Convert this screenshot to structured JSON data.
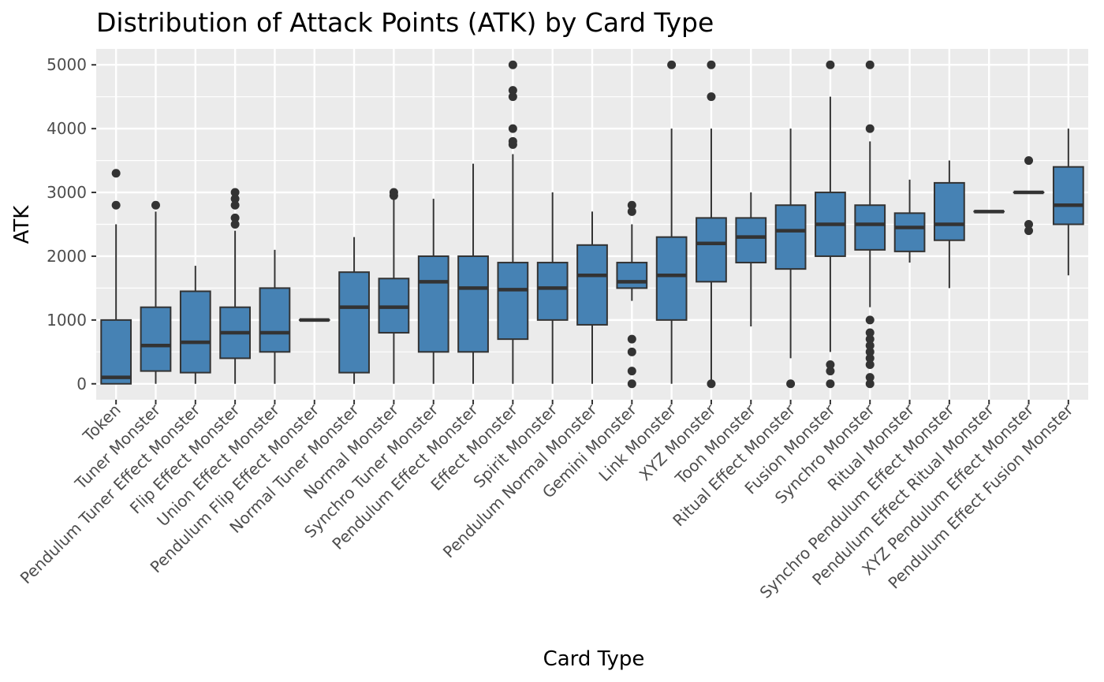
{
  "chart_data": {
    "type": "boxplot",
    "title": "Distribution of Attack Points (ATK) by Card Type",
    "xlabel": "Card Type",
    "ylabel": "ATK",
    "ylim": [
      -250,
      5250
    ],
    "yticks": [
      0,
      1000,
      2000,
      3000,
      4000,
      5000
    ],
    "grid": true,
    "legend": "none",
    "colors": {
      "panel": "#ebebeb",
      "grid": "#ffffff",
      "box_fill": "#4682b4",
      "box_line": "#333333",
      "tick_text": "#4d4d4d"
    },
    "categories": [
      {
        "label": "Token",
        "min": 0,
        "q1": 0,
        "median": 100,
        "q3": 1000,
        "max": 2500,
        "outliers": [
          2800,
          3300
        ]
      },
      {
        "label": "Tuner Monster",
        "min": 0,
        "q1": 200,
        "median": 600,
        "q3": 1200,
        "max": 2700,
        "outliers": [
          2800
        ]
      },
      {
        "label": "Pendulum Tuner Effect Monster",
        "min": 0,
        "q1": 175,
        "median": 650,
        "q3": 1450,
        "max": 1850,
        "outliers": []
      },
      {
        "label": "Flip Effect Monster",
        "min": 0,
        "q1": 400,
        "median": 800,
        "q3": 1200,
        "max": 2400,
        "outliers": [
          2500,
          2600,
          2800,
          2900,
          3000
        ]
      },
      {
        "label": "Union Effect Monster",
        "min": 0,
        "q1": 500,
        "median": 800,
        "q3": 1500,
        "max": 2100,
        "outliers": []
      },
      {
        "label": "Pendulum Flip Effect Monster",
        "min": 1000,
        "q1": 1000,
        "median": 1000,
        "q3": 1000,
        "max": 1000,
        "outliers": []
      },
      {
        "label": "Normal Tuner Monster",
        "min": 0,
        "q1": 175,
        "median": 1200,
        "q3": 1750,
        "max": 2300,
        "outliers": []
      },
      {
        "label": "Normal Monster",
        "min": 0,
        "q1": 800,
        "median": 1200,
        "q3": 1650,
        "max": 2900,
        "outliers": [
          2950,
          3000
        ]
      },
      {
        "label": "Synchro Tuner Monster",
        "min": 0,
        "q1": 500,
        "median": 1600,
        "q3": 2000,
        "max": 2900,
        "outliers": []
      },
      {
        "label": "Pendulum Effect Monster",
        "min": 0,
        "q1": 500,
        "median": 1500,
        "q3": 2000,
        "max": 3450,
        "outliers": []
      },
      {
        "label": "Effect Monster",
        "min": 0,
        "q1": 700,
        "median": 1475,
        "q3": 1900,
        "max": 3600,
        "outliers": [
          3750,
          3800,
          4000,
          4500,
          4600,
          5000
        ]
      },
      {
        "label": "Spirit Monster",
        "min": 0,
        "q1": 1000,
        "median": 1500,
        "q3": 1900,
        "max": 3000,
        "outliers": []
      },
      {
        "label": "Pendulum Normal Monster",
        "min": 0,
        "q1": 925,
        "median": 1700,
        "q3": 2175,
        "max": 2700,
        "outliers": []
      },
      {
        "label": "Gemini Monster",
        "min": 1300,
        "q1": 1500,
        "median": 1600,
        "q3": 1900,
        "max": 2500,
        "outliers": [
          0,
          200,
          500,
          700,
          2700,
          2800
        ]
      },
      {
        "label": "Link Monster",
        "min": 0,
        "q1": 1000,
        "median": 1700,
        "q3": 2300,
        "max": 4000,
        "outliers": [
          5000
        ]
      },
      {
        "label": "XYZ Monster",
        "min": 0,
        "q1": 1600,
        "median": 2200,
        "q3": 2600,
        "max": 4000,
        "outliers": [
          0,
          4500,
          5000
        ]
      },
      {
        "label": "Toon Monster",
        "min": 900,
        "q1": 1900,
        "median": 2300,
        "q3": 2600,
        "max": 3000,
        "outliers": []
      },
      {
        "label": "Ritual Effect Monster",
        "min": 400,
        "q1": 1800,
        "median": 2400,
        "q3": 2800,
        "max": 4000,
        "outliers": [
          0
        ]
      },
      {
        "label": "Fusion Monster",
        "min": 500,
        "q1": 2000,
        "median": 2500,
        "q3": 3000,
        "max": 4500,
        "outliers": [
          0,
          200,
          300,
          5000
        ]
      },
      {
        "label": "Synchro Monster",
        "min": 1200,
        "q1": 2100,
        "median": 2500,
        "q3": 2800,
        "max": 3800,
        "outliers": [
          0,
          100,
          300,
          400,
          500,
          600,
          700,
          800,
          1000,
          4000,
          5000
        ]
      },
      {
        "label": "Ritual Monster",
        "min": 1900,
        "q1": 2075,
        "median": 2450,
        "q3": 2675,
        "max": 3200,
        "outliers": []
      },
      {
        "label": "Synchro Pendulum Effect Monster",
        "min": 1500,
        "q1": 2250,
        "median": 2500,
        "q3": 3150,
        "max": 3500,
        "outliers": []
      },
      {
        "label": "Pendulum Effect Ritual Monster",
        "min": 2700,
        "q1": 2700,
        "median": 2700,
        "q3": 2700,
        "max": 2700,
        "outliers": []
      },
      {
        "label": "XYZ Pendulum Effect Monster",
        "min": 3000,
        "q1": 3000,
        "median": 3000,
        "q3": 3000,
        "max": 3000,
        "outliers": [
          2400,
          2500,
          3500
        ]
      },
      {
        "label": "Pendulum Effect Fusion Monster",
        "min": 1700,
        "q1": 2500,
        "median": 2800,
        "q3": 3400,
        "max": 4000,
        "outliers": []
      }
    ]
  }
}
